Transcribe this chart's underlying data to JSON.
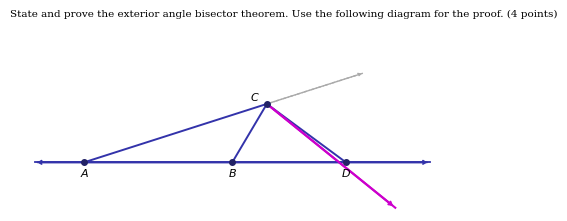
{
  "title": "State and prove the exterior angle bisector theorem. Use the following diagram for the proof. (4 points)",
  "title_fontsize": 7.5,
  "bg_color": "#ffffff",
  "A": [
    1.5,
    0.0
  ],
  "B": [
    4.5,
    0.0
  ],
  "C": [
    5.2,
    1.8
  ],
  "D": [
    6.8,
    0.0
  ],
  "horiz_x0": 0.5,
  "horiz_x1": 8.5,
  "horiz_y": 0.0,
  "horiz_color": "#3333aa",
  "triangle_color": "#3333aa",
  "bisector_color": "#cc00cc",
  "dashed_color": "#aaaaaa",
  "point_color": "#222266",
  "point_size": 4.0,
  "label_fontsize": 8,
  "xlim": [
    0.0,
    9.5
  ],
  "ylim": [
    -1.5,
    3.5
  ]
}
